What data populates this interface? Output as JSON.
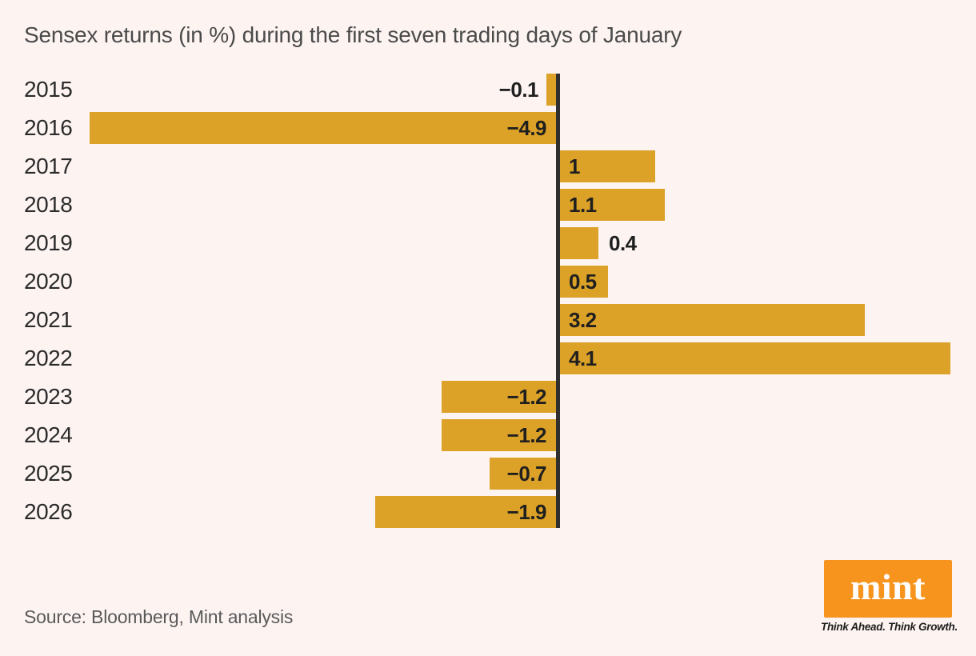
{
  "title": "Sensex returns (in %) during the first seven trading days of January",
  "source": "Source: Bloomberg, Mint analysis",
  "branding": {
    "logo_text": "mint",
    "tagline": "Think Ahead. Think Growth."
  },
  "colors": {
    "background": "#FDF4F2",
    "bar": "#DCA127",
    "axis": "#2F2F2F",
    "logo_box": "#F7941E",
    "value_text": "#1F1F1F",
    "title_text": "#4A4A4A"
  },
  "chart_data": {
    "type": "bar",
    "orientation": "horizontal",
    "title": "Sensex returns (in %) during the first seven trading days of January",
    "xlabel": "",
    "ylabel": "",
    "unit": "%",
    "baseline": 0,
    "xlim": [
      -4.9,
      4.1
    ],
    "grid": false,
    "legend": false,
    "categories": [
      "2015",
      "2016",
      "2017",
      "2018",
      "2019",
      "2020",
      "2021",
      "2022",
      "2023",
      "2024",
      "2025",
      "2026"
    ],
    "values": [
      -0.1,
      -4.9,
      1,
      1.1,
      0.4,
      0.5,
      3.2,
      4.1,
      -1.2,
      -1.2,
      -0.7,
      -1.9
    ],
    "value_labels": [
      "−0.1",
      "−4.9",
      "1",
      "1.1",
      "0.4",
      "0.5",
      "3.2",
      "4.1",
      "−1.2",
      "−1.2",
      "−0.7",
      "−1.9"
    ]
  }
}
